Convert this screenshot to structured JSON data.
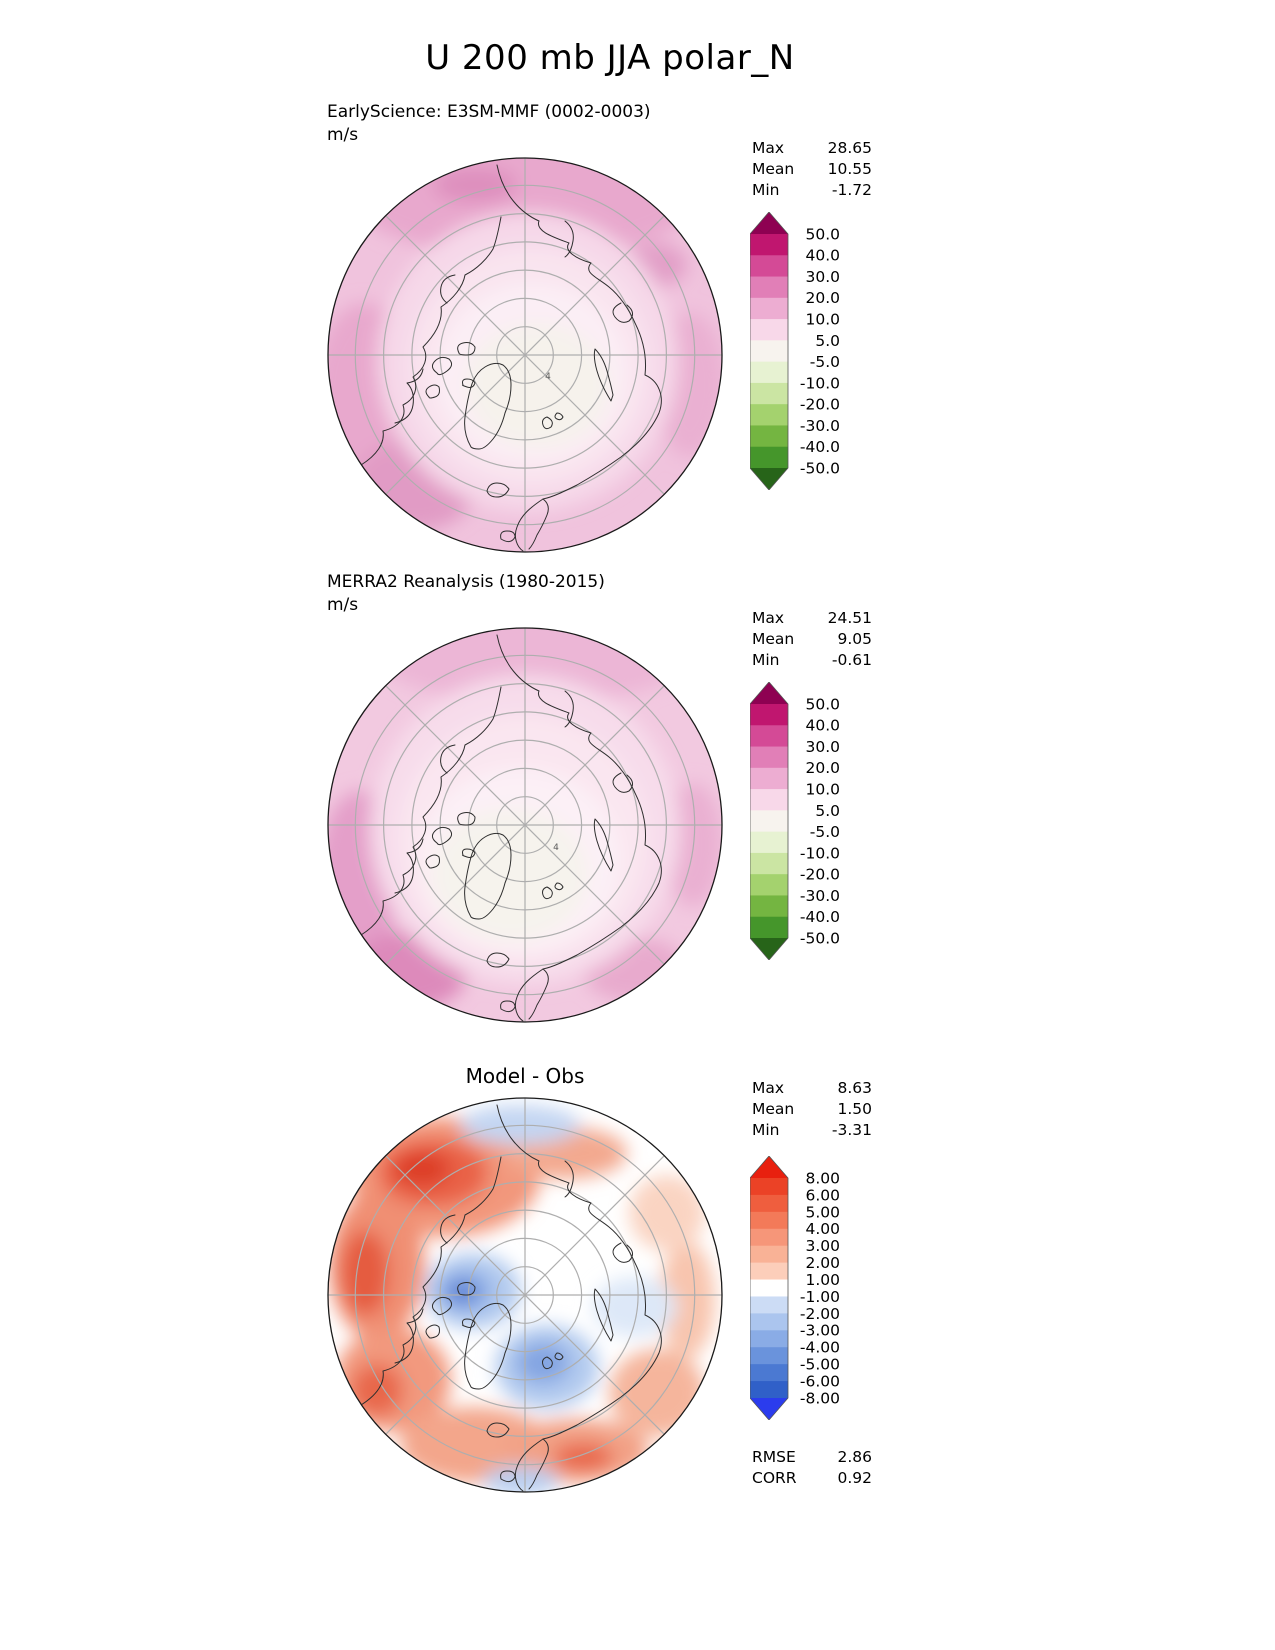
{
  "title": "U 200 mb JJA polar_N",
  "panels": [
    {
      "label": "EarlyScience: E3SM-MMF (0002-0003)",
      "units": "m/s",
      "contour_label": "4",
      "stats": {
        "max_label": "Max",
        "max": "28.65",
        "mean_label": "Mean",
        "mean": "10.55",
        "min_label": "Min",
        "min": "-1.72"
      },
      "colorbar": {
        "tick_labels": [
          "50.0",
          "40.0",
          "30.0",
          "20.0",
          "10.0",
          "5.0",
          "-5.0",
          "-10.0",
          "-20.0",
          "-30.0",
          "-40.0",
          "-50.0"
        ],
        "colors": [
          "#8e0152",
          "#c0166f",
          "#d44a96",
          "#e17fb7",
          "#edadd2",
          "#f8d8e9",
          "#f7f3ee",
          "#e7f2d2",
          "#cbe5a3",
          "#a4d26e",
          "#74b541",
          "#45962b",
          "#276419"
        ]
      }
    },
    {
      "label": "MERRA2 Reanalysis (1980-2015)",
      "units": "m/s",
      "contour_label": "4",
      "stats": {
        "max_label": "Max",
        "max": "24.51",
        "mean_label": "Mean",
        "mean": "9.05",
        "min_label": "Min",
        "min": "-0.61"
      },
      "colorbar": {
        "tick_labels": [
          "50.0",
          "40.0",
          "30.0",
          "20.0",
          "10.0",
          "5.0",
          "-5.0",
          "-10.0",
          "-20.0",
          "-30.0",
          "-40.0",
          "-50.0"
        ],
        "colors": [
          "#8e0152",
          "#c0166f",
          "#d44a96",
          "#e17fb7",
          "#edadd2",
          "#f8d8e9",
          "#f7f3ee",
          "#e7f2d2",
          "#cbe5a3",
          "#a4d26e",
          "#74b541",
          "#45962b",
          "#276419"
        ]
      }
    },
    {
      "label": "Model - Obs",
      "stats": {
        "max_label": "Max",
        "max": "8.63",
        "mean_label": "Mean",
        "mean": "1.50",
        "min_label": "Min",
        "min": "-3.31"
      },
      "colorbar": {
        "tick_labels": [
          "8.00",
          "6.00",
          "5.00",
          "4.00",
          "3.00",
          "2.00",
          "1.00",
          "-1.00",
          "-2.00",
          "-3.00",
          "-4.00",
          "-5.00",
          "-6.00",
          "-8.00"
        ],
        "colors": [
          "#e8200f",
          "#eb4226",
          "#ef5e3e",
          "#f37a59",
          "#f69679",
          "#f9b296",
          "#fcceba",
          "#ffffff",
          "#ccdcf5",
          "#abc5ee",
          "#8aace6",
          "#6a93dc",
          "#4b79d2",
          "#3060c8",
          "#2b3ced"
        ]
      },
      "metrics": {
        "rmse_label": "RMSE",
        "rmse": "2.86",
        "corr_label": "CORR",
        "corr": "0.92"
      }
    }
  ],
  "chart_data": [
    {
      "type": "heatmap",
      "subtype": "polar_contour_map",
      "title": "EarlyScience: E3SM-MMF (0002-0003)",
      "variable": "U 200 mb",
      "season": "JJA",
      "projection": "polar_N",
      "units": "m/s",
      "stats": {
        "max": 28.65,
        "mean": 10.55,
        "min": -1.72
      },
      "contour_levels": [
        -50,
        -40,
        -30,
        -20,
        -10,
        -5,
        5,
        10,
        20,
        30,
        40,
        50
      ],
      "colormap_colors": [
        "#8e0152",
        "#c0166f",
        "#d44a96",
        "#e17fb7",
        "#edadd2",
        "#f8d8e9",
        "#f7f3ee",
        "#e7f2d2",
        "#cbe5a3",
        "#a4d26e",
        "#74b541",
        "#45962b",
        "#276419"
      ],
      "legend_position": "right"
    },
    {
      "type": "heatmap",
      "subtype": "polar_contour_map",
      "title": "MERRA2 Reanalysis (1980-2015)",
      "variable": "U 200 mb",
      "season": "JJA",
      "projection": "polar_N",
      "units": "m/s",
      "stats": {
        "max": 24.51,
        "mean": 9.05,
        "min": -0.61
      },
      "contour_levels": [
        -50,
        -40,
        -30,
        -20,
        -10,
        -5,
        5,
        10,
        20,
        30,
        40,
        50
      ],
      "colormap_colors": [
        "#8e0152",
        "#c0166f",
        "#d44a96",
        "#e17fb7",
        "#edadd2",
        "#f8d8e9",
        "#f7f3ee",
        "#e7f2d2",
        "#cbe5a3",
        "#a4d26e",
        "#74b541",
        "#45962b",
        "#276419"
      ],
      "legend_position": "right"
    },
    {
      "type": "heatmap",
      "subtype": "polar_contour_map",
      "title": "Model - Obs",
      "variable": "U 200 mb",
      "season": "JJA",
      "projection": "polar_N",
      "stats": {
        "max": 8.63,
        "mean": 1.5,
        "min": -3.31
      },
      "metrics": {
        "rmse": 2.86,
        "corr": 0.92
      },
      "contour_levels": [
        -8,
        -6,
        -5,
        -4,
        -3,
        -2,
        -1,
        1,
        2,
        3,
        4,
        5,
        6,
        8
      ],
      "colormap_colors": [
        "#e8200f",
        "#eb4226",
        "#ef5e3e",
        "#f37a59",
        "#f69679",
        "#f9b296",
        "#fcceba",
        "#ffffff",
        "#ccdcf5",
        "#abc5ee",
        "#8aace6",
        "#6a93dc",
        "#4b79d2",
        "#3060c8",
        "#2b3ced"
      ],
      "legend_position": "right"
    }
  ]
}
